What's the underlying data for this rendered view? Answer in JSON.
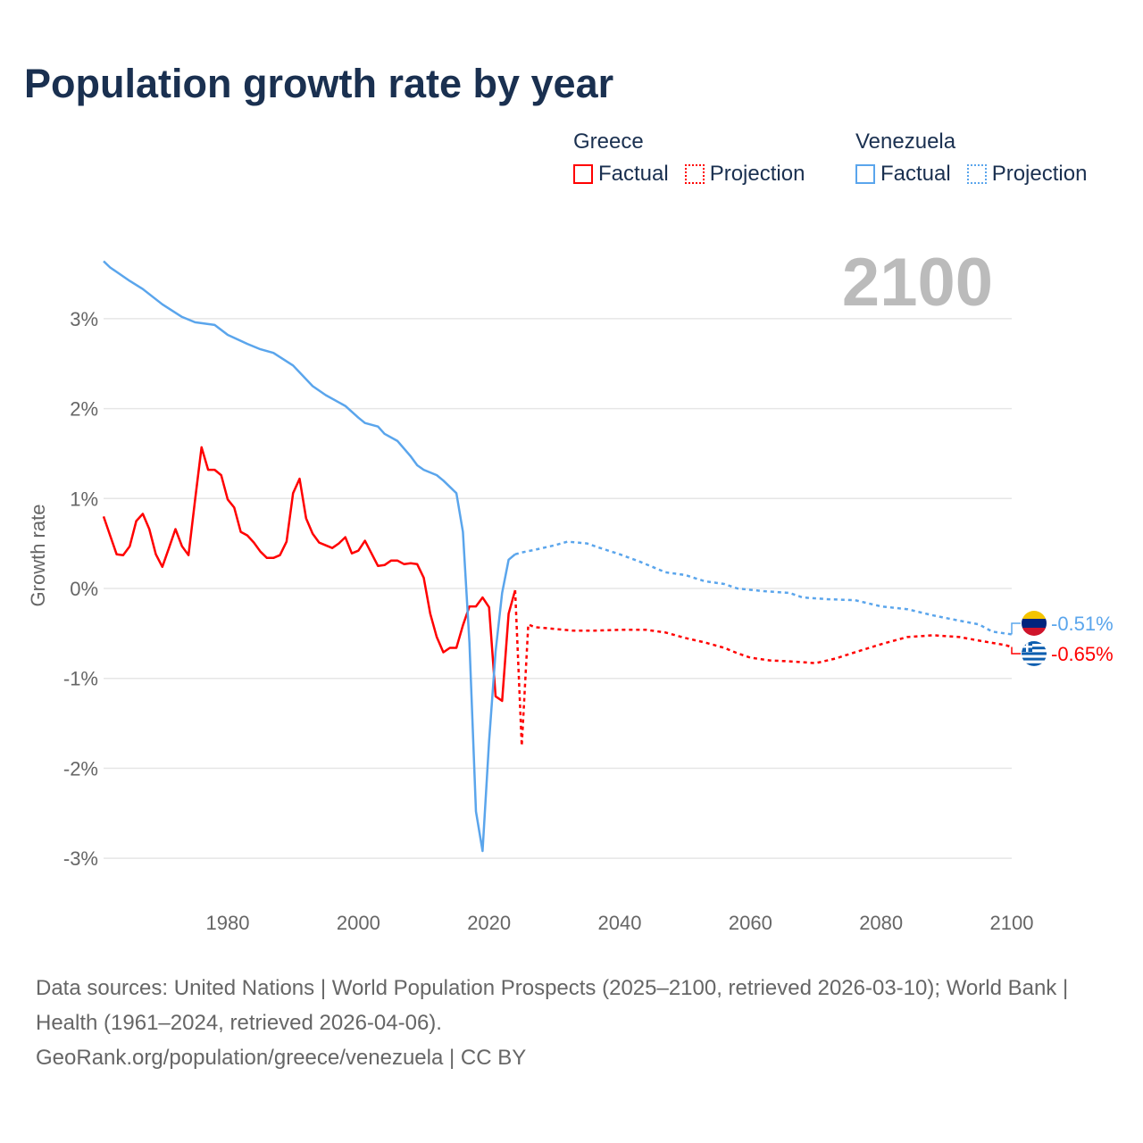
{
  "colors": {
    "greece": "#ff0000",
    "venezuela": "#5aa5ec",
    "grid": "#e6e6e6",
    "year_label": "#bbbbbb"
  },
  "chart_data": {
    "type": "line",
    "title": "Population growth rate by year",
    "ylabel": "Growth rate",
    "xlabel": "",
    "xlim": [
      1961,
      2100
    ],
    "ylim": [
      -3.5,
      3.8
    ],
    "x_ticks": [
      1980,
      2000,
      2020,
      2040,
      2060,
      2080,
      2100
    ],
    "x_tick_labels": [
      "1980",
      "2000",
      "2020",
      "2040",
      "2060",
      "2080",
      "2100"
    ],
    "y_ticks": [
      3,
      2,
      1,
      0,
      -1,
      -2,
      -3
    ],
    "y_tick_labels": [
      "3%",
      "2%",
      "1%",
      "0%",
      "-1%",
      "-2%",
      "-3%"
    ],
    "grid": true,
    "year_indicator": "2100",
    "legend": {
      "placement": "top-right",
      "groups": [
        {
          "name": "Greece",
          "items": [
            "Factual",
            "Projection"
          ]
        },
        {
          "name": "Venezuela",
          "items": [
            "Factual",
            "Projection"
          ]
        }
      ]
    },
    "series": [
      {
        "name": "Greece Factual",
        "country": "Greece",
        "style": "solid",
        "x": [
          1961,
          1962,
          1963,
          1964,
          1965,
          1966,
          1967,
          1968,
          1969,
          1970,
          1971,
          1972,
          1973,
          1974,
          1975,
          1976,
          1977,
          1978,
          1979,
          1980,
          1981,
          1982,
          1983,
          1984,
          1985,
          1986,
          1987,
          1988,
          1989,
          1990,
          1991,
          1992,
          1993,
          1994,
          1995,
          1996,
          1997,
          1998,
          1999,
          2000,
          2001,
          2002,
          2003,
          2004,
          2005,
          2006,
          2007,
          2008,
          2009,
          2010,
          2011,
          2012,
          2013,
          2014,
          2015,
          2016,
          2017,
          2018,
          2019,
          2020,
          2021,
          2022,
          2023,
          2024
        ],
        "y": [
          0.8,
          0.59,
          0.38,
          0.37,
          0.47,
          0.75,
          0.83,
          0.66,
          0.38,
          0.24,
          0.45,
          0.66,
          0.47,
          0.37,
          0.98,
          1.57,
          1.32,
          1.32,
          1.26,
          0.99,
          0.9,
          0.63,
          0.59,
          0.51,
          0.41,
          0.34,
          0.34,
          0.37,
          0.52,
          1.06,
          1.22,
          0.78,
          0.61,
          0.51,
          0.48,
          0.45,
          0.5,
          0.57,
          0.39,
          0.42,
          0.53,
          0.39,
          0.25,
          0.26,
          0.31,
          0.31,
          0.27,
          0.28,
          0.27,
          0.12,
          -0.28,
          -0.54,
          -0.71,
          -0.66,
          -0.66,
          -0.41,
          -0.2,
          -0.2,
          -0.1,
          -0.21,
          -1.2,
          -1.25,
          -0.28,
          -0.02
        ]
      },
      {
        "name": "Greece Projection",
        "country": "Greece",
        "style": "dotted",
        "x": [
          2024,
          2025,
          2026,
          2027,
          2030,
          2033,
          2036,
          2040,
          2044,
          2047,
          2050,
          2053,
          2056,
          2058,
          2060,
          2063,
          2066,
          2068,
          2070,
          2073,
          2076,
          2080,
          2084,
          2088,
          2092,
          2095,
          2099,
          2100
        ],
        "y": [
          -0.02,
          -1.75,
          -0.4,
          -0.43,
          -0.45,
          -0.47,
          -0.47,
          -0.46,
          -0.46,
          -0.49,
          -0.55,
          -0.6,
          -0.66,
          -0.72,
          -0.77,
          -0.8,
          -0.81,
          -0.82,
          -0.83,
          -0.78,
          -0.71,
          -0.62,
          -0.54,
          -0.52,
          -0.54,
          -0.58,
          -0.63,
          -0.65
        ]
      },
      {
        "name": "Venezuela Factual",
        "country": "Venezuela",
        "style": "solid",
        "x": [
          1961,
          1962,
          1965,
          1967,
          1970,
          1973,
          1975,
          1978,
          1980,
          1983,
          1985,
          1987,
          1990,
          1993,
          1995,
          1998,
          2000,
          2001,
          2003,
          2004,
          2006,
          2008,
          2009,
          2010,
          2012,
          2013,
          2015,
          2016,
          2017,
          2018,
          2019,
          2020,
          2021,
          2022,
          2023,
          2024
        ],
        "y": [
          3.64,
          3.57,
          3.42,
          3.33,
          3.16,
          3.02,
          2.96,
          2.93,
          2.82,
          2.72,
          2.66,
          2.62,
          2.48,
          2.25,
          2.15,
          2.03,
          1.9,
          1.84,
          1.8,
          1.72,
          1.64,
          1.47,
          1.37,
          1.32,
          1.26,
          1.2,
          1.06,
          0.63,
          -0.6,
          -2.48,
          -2.92,
          -1.7,
          -0.7,
          -0.05,
          0.32,
          0.38
        ]
      },
      {
        "name": "Venezuela Projection",
        "country": "Venezuela",
        "style": "dotted",
        "x": [
          2024,
          2025,
          2027,
          2030,
          2032,
          2035,
          2037,
          2040,
          2043,
          2045,
          2047,
          2050,
          2053,
          2056,
          2058,
          2062,
          2066,
          2068,
          2072,
          2076,
          2080,
          2084,
          2088,
          2090,
          2095,
          2097,
          2100
        ],
        "y": [
          0.38,
          0.4,
          0.43,
          0.48,
          0.52,
          0.5,
          0.45,
          0.38,
          0.3,
          0.24,
          0.18,
          0.15,
          0.08,
          0.05,
          0.0,
          -0.03,
          -0.05,
          -0.1,
          -0.12,
          -0.13,
          -0.2,
          -0.23,
          -0.3,
          -0.33,
          -0.4,
          -0.48,
          -0.51
        ]
      }
    ],
    "end_labels": [
      {
        "country": "Venezuela",
        "value": -0.51,
        "text": "-0.51%",
        "flag": "venezuela-flag"
      },
      {
        "country": "Greece",
        "value": -0.65,
        "text": "-0.65%",
        "flag": "greece-flag"
      }
    ]
  },
  "footer": {
    "sources": "Data sources: United Nations | World Population Prospects (2025–2100, retrieved 2026-03-10); World Bank | Health (1961–2024, retrieved 2026-04-06).",
    "link": "GeoRank.org/population/greece/venezuela | CC BY"
  }
}
